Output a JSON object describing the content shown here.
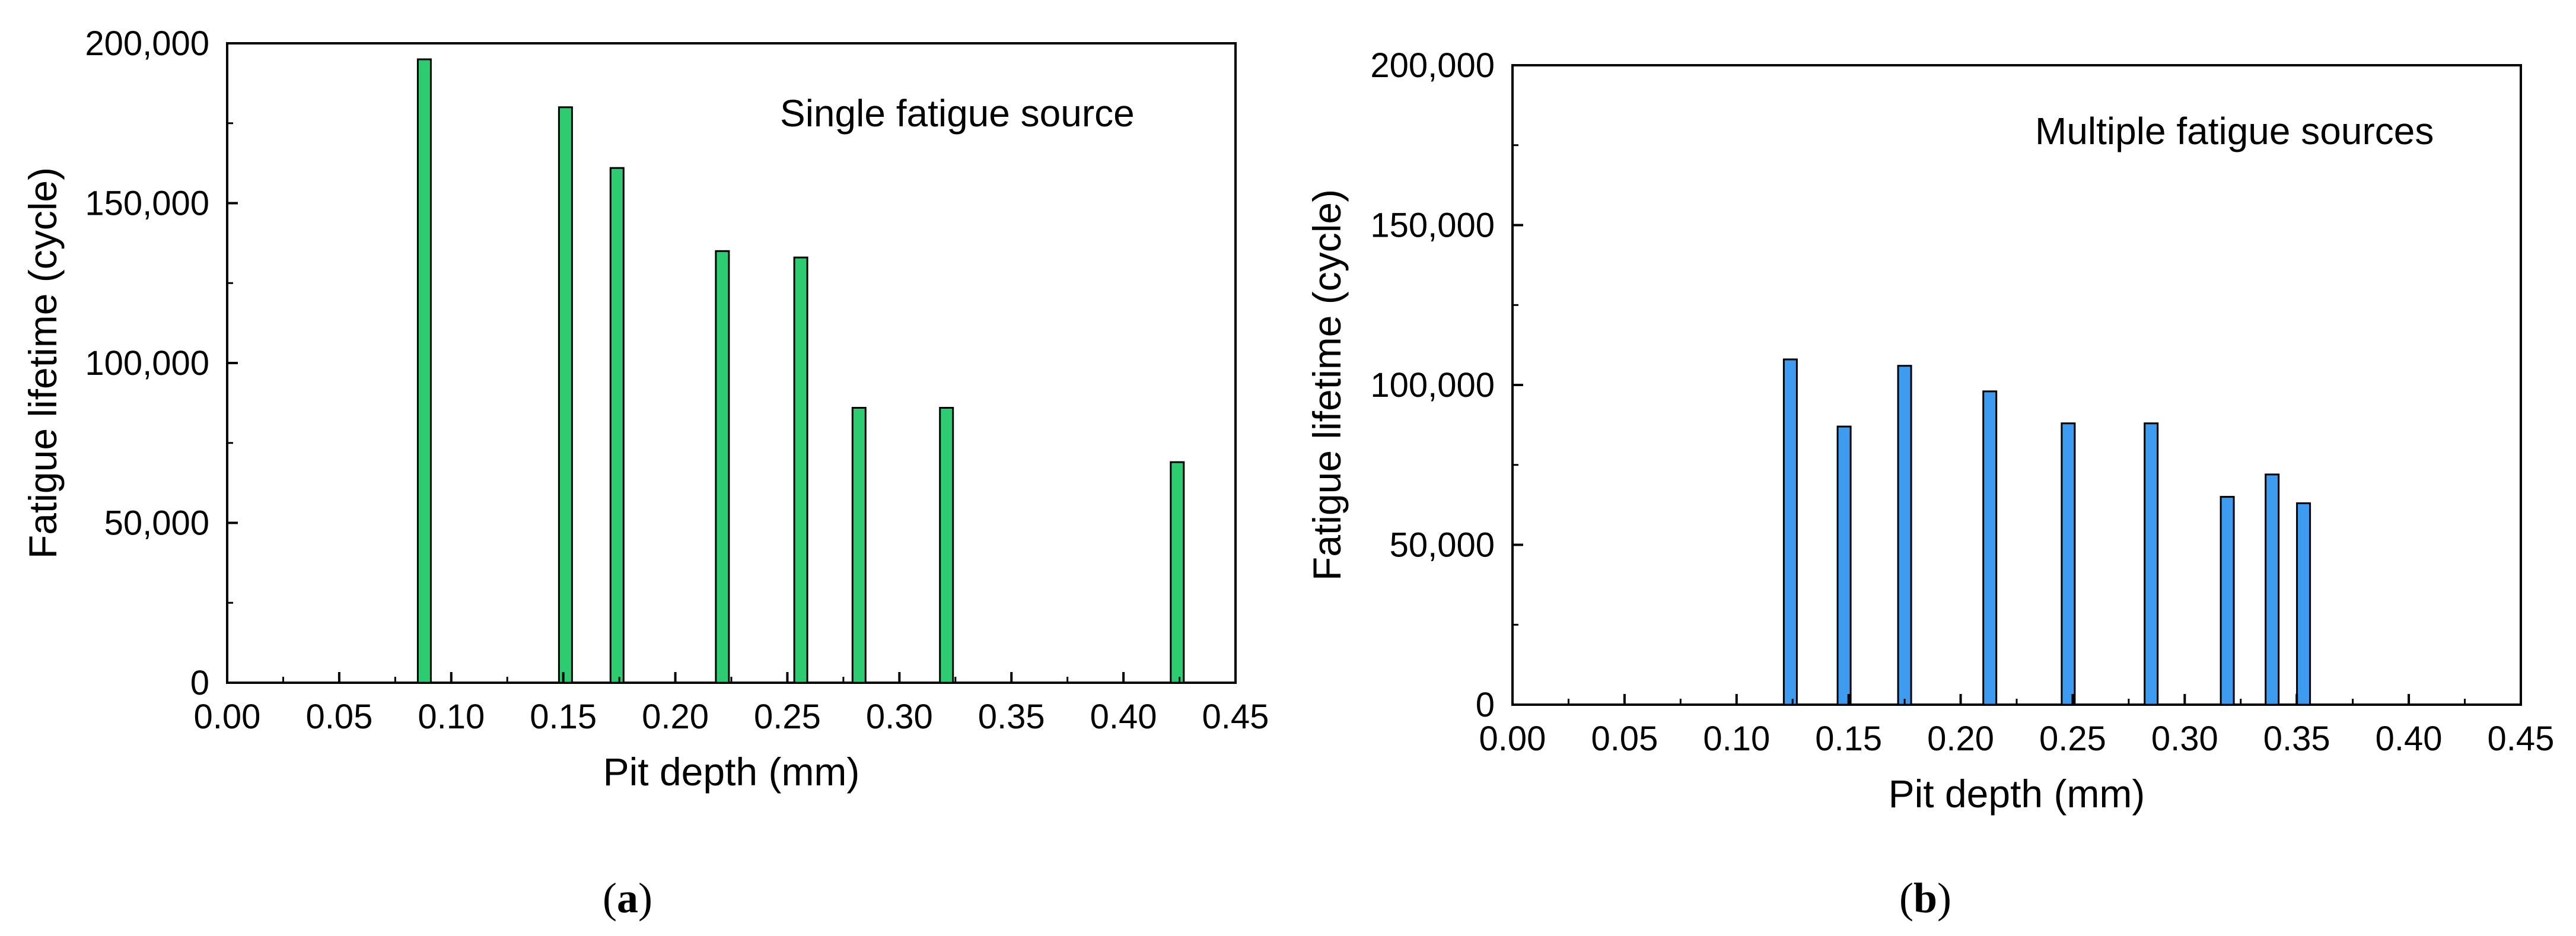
{
  "chart_data": [
    {
      "type": "bar",
      "title": "Single fatigue source",
      "xlabel": "Pit depth (mm)",
      "ylabel": "Fatigue lifetime (cycle)",
      "xlim": [
        0,
        0.45
      ],
      "ylim": [
        0,
        200000
      ],
      "xticks": [
        "0.00",
        "0.05",
        "0.10",
        "0.15",
        "0.20",
        "0.25",
        "0.30",
        "0.35",
        "0.40",
        "0.45"
      ],
      "yticks": [
        "0",
        "50,000",
        "100,000",
        "150,000",
        "200,000"
      ],
      "bar_color": "#2ecc71",
      "x": [
        0.088,
        0.151,
        0.174,
        0.221,
        0.256,
        0.282,
        0.321,
        0.424
      ],
      "values": [
        195000,
        180000,
        161000,
        135000,
        133000,
        86000,
        86000,
        69000
      ],
      "caption_open": "(",
      "caption_letter": "a",
      "caption_close": ")",
      "grid": false,
      "legend": "none"
    },
    {
      "type": "bar",
      "title": "Multiple fatigue sources",
      "xlabel": "Pit depth (mm)",
      "ylabel": "Fatigue lifetime (cycle)",
      "xlim": [
        0,
        0.45
      ],
      "ylim": [
        0,
        200000
      ],
      "xticks": [
        "0.00",
        "0.05",
        "0.10",
        "0.15",
        "0.20",
        "0.25",
        "0.30",
        "0.35",
        "0.40",
        "0.45"
      ],
      "yticks": [
        "0",
        "50,000",
        "100,000",
        "150,000",
        "200,000"
      ],
      "bar_color": "#3d9cf0",
      "x": [
        0.124,
        0.148,
        0.175,
        0.213,
        0.248,
        0.285,
        0.319,
        0.339,
        0.353
      ],
      "values": [
        108000,
        87000,
        106000,
        98000,
        88000,
        88000,
        65000,
        72000,
        63000
      ],
      "caption_open": "(",
      "caption_letter": "b",
      "caption_close": ")",
      "grid": false,
      "legend": "none"
    }
  ]
}
